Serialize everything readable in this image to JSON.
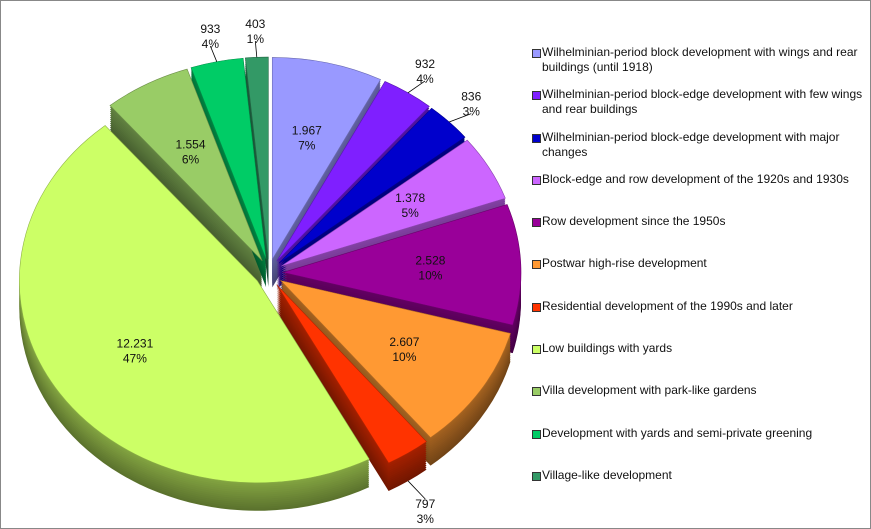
{
  "chart_data": {
    "type": "pie",
    "style": "3d-exploded",
    "title": "",
    "legend_position": "right",
    "categories": [
      "Wilhelminian-period block development with wings and rear buildings (until 1918)",
      "Wilhelminian-period block-edge development with few wings and rear buildings",
      "Wilhelminian-period block-edge development with major changes",
      "Block-edge and row development of the 1920s and 1930s",
      "Row development since the 1950s",
      "Postwar high-rise development",
      "Residential development of the 1990s and later",
      "Low buildings with yards",
      "Villa development with park-like gardens",
      "Development with yards and semi-private greening",
      "Village-like development"
    ],
    "values": [
      1967,
      932,
      836,
      1378,
      2528,
      2607,
      797,
      12231,
      1554,
      933,
      403
    ],
    "value_labels": [
      "1.967",
      "932",
      "836",
      "1.378",
      "2.528",
      "2.607",
      "797",
      "12.231",
      "1.554",
      "933",
      "403"
    ],
    "percent_labels": [
      "7%",
      "4%",
      "3%",
      "5%",
      "10%",
      "10%",
      "3%",
      "47%",
      "6%",
      "4%",
      "1%"
    ],
    "label_outside": [
      false,
      true,
      true,
      false,
      false,
      false,
      true,
      false,
      false,
      true,
      true
    ],
    "colors": [
      "#9999FF",
      "#7F1FFF",
      "#0000CC",
      "#CC66FF",
      "#990099",
      "#FF9933",
      "#FF3300",
      "#CCFF66",
      "#99CC66",
      "#00CC66",
      "#339966"
    ]
  }
}
